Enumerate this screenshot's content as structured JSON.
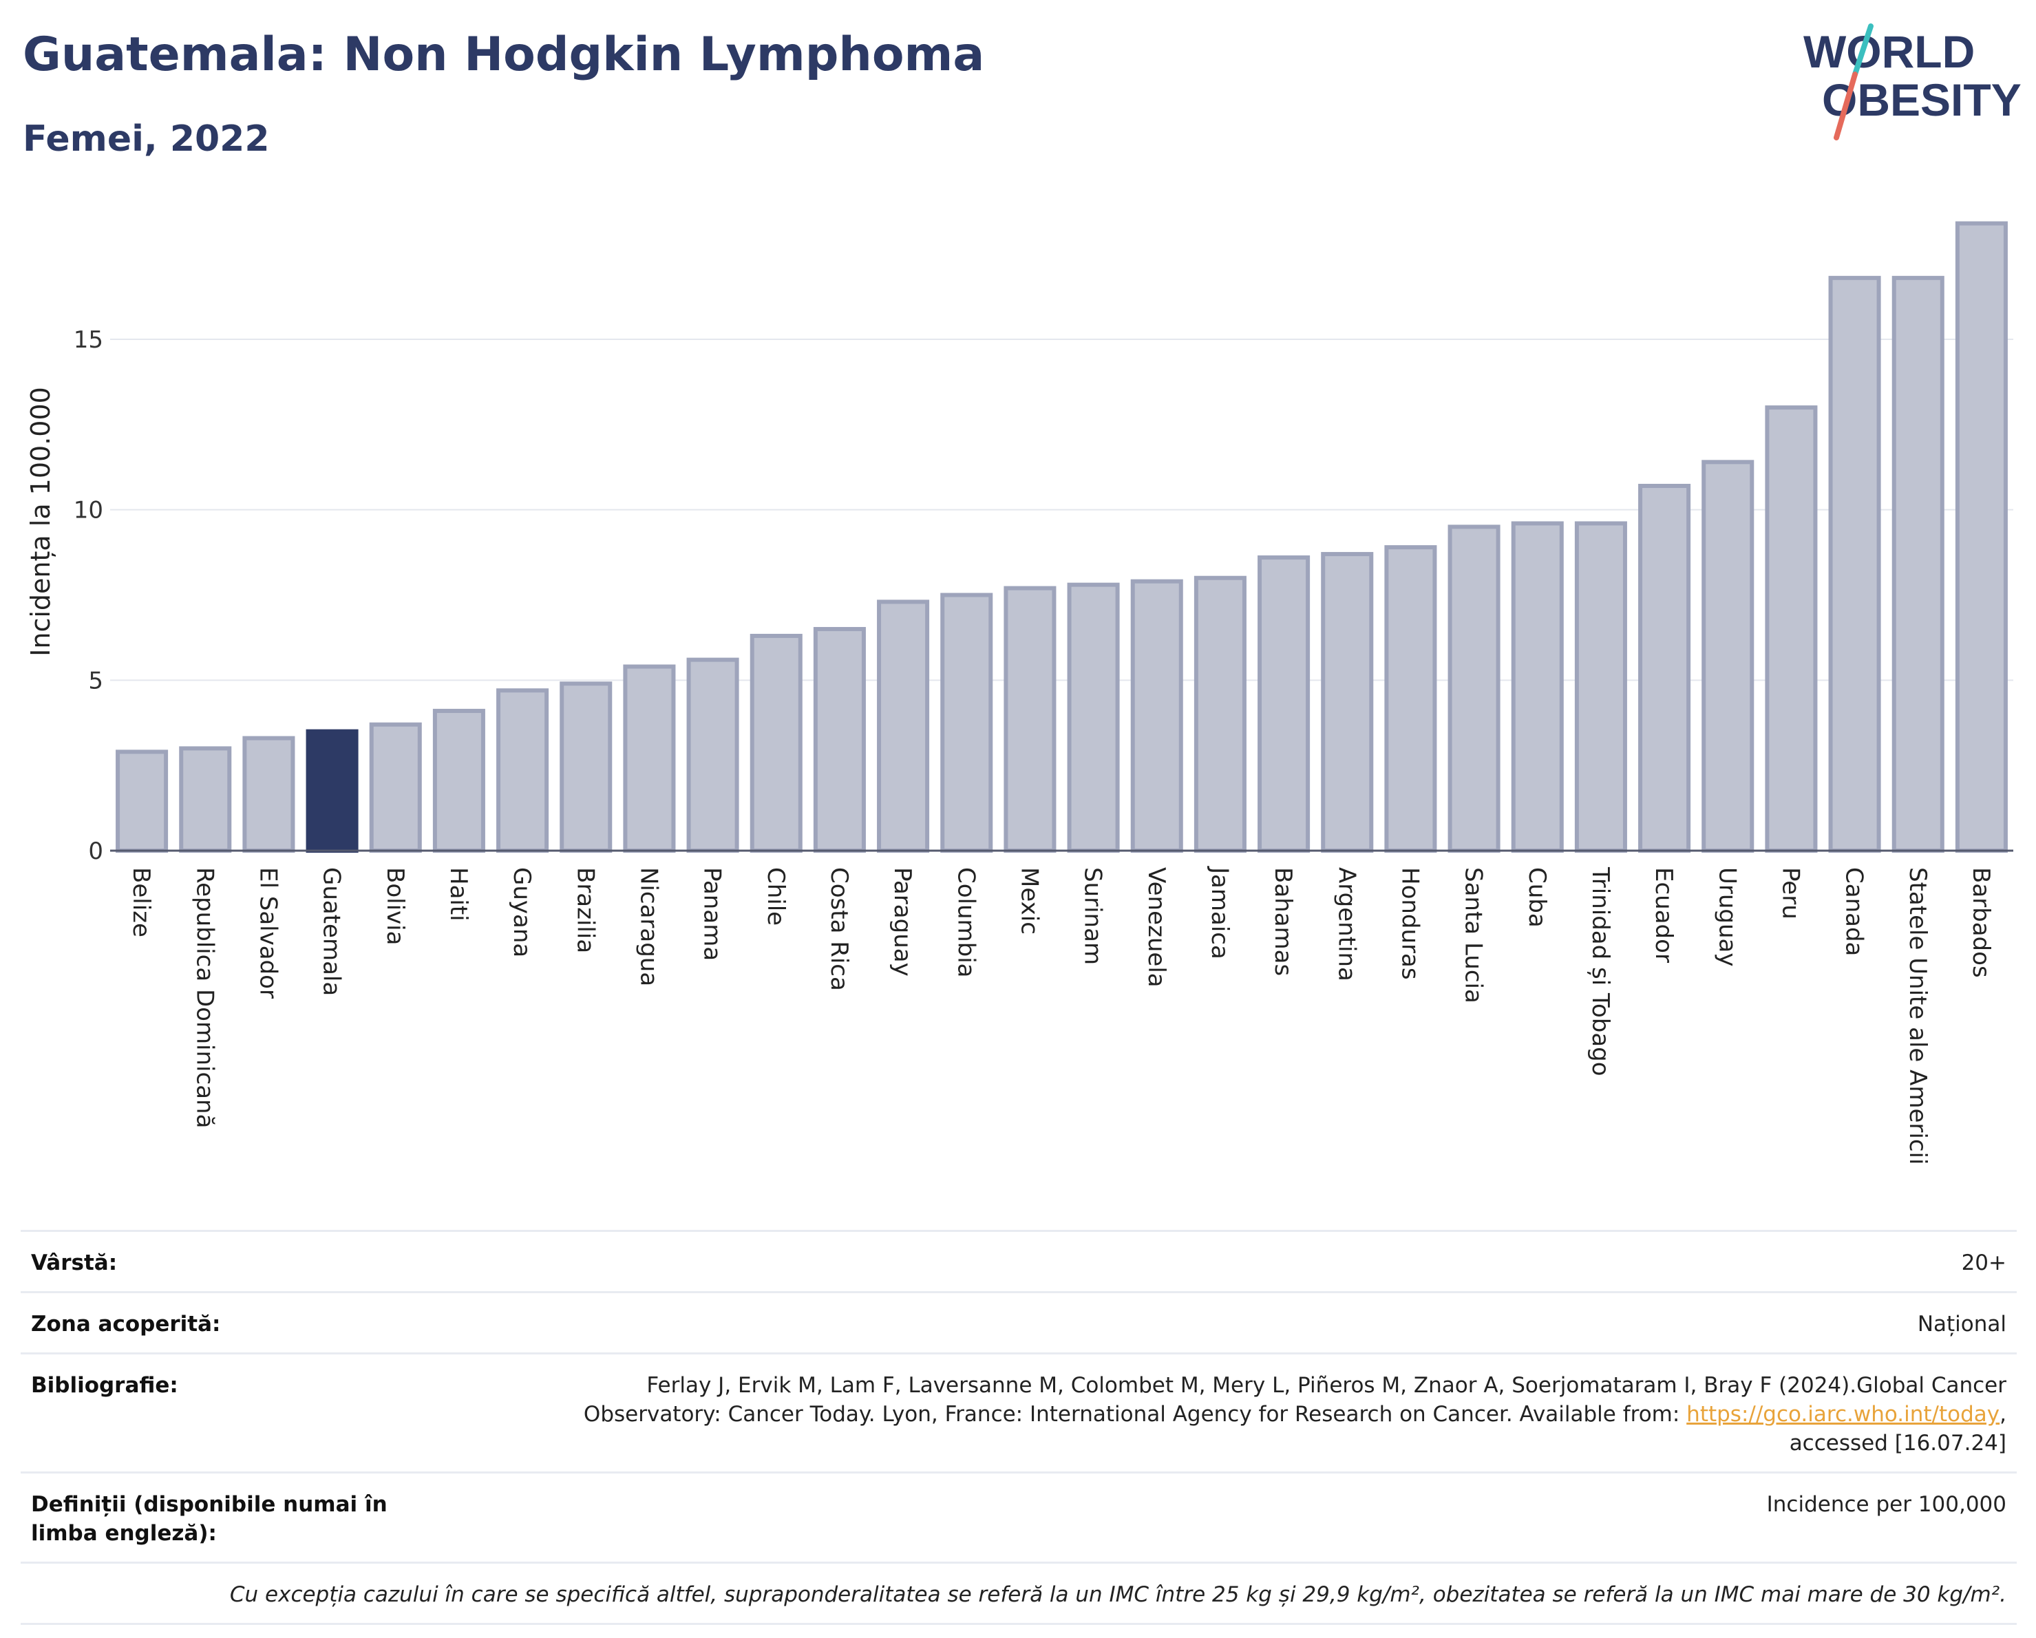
{
  "header": {
    "title": "Guatemala: Non Hodgkin Lymphoma",
    "subtitle": "Femei, 2022"
  },
  "logo": {
    "line1": "WORLD",
    "line2": "OBESITY",
    "colors": {
      "text": "#2d3a65",
      "slash_teal": "#3bbfbf",
      "slash_red": "#e56a5b"
    }
  },
  "chart_data": {
    "type": "bar",
    "title": "Guatemala: Non Hodgkin Lymphoma",
    "subtitle": "Femei, 2022",
    "xlabel": "",
    "ylabel": "Incidența la 100.000",
    "ylim": [
      0,
      18.5
    ],
    "yticks": [
      0,
      5,
      10,
      15
    ],
    "grid": true,
    "highlight": "Guatemala",
    "colors": {
      "bar": "#bfc3d1",
      "bar_stroke": "#9ea4bb",
      "highlight": "#2d3a65"
    },
    "categories": [
      "Belize",
      "Republica Dominicană",
      "El Salvador",
      "Guatemala",
      "Bolivia",
      "Haiti",
      "Guyana",
      "Brazilia",
      "Nicaragua",
      "Panama",
      "Chile",
      "Costa Rica",
      "Paraguay",
      "Columbia",
      "Mexic",
      "Surinam",
      "Venezuela",
      "Jamaica",
      "Bahamas",
      "Argentina",
      "Honduras",
      "Santa Lucia",
      "Cuba",
      "Trinidad și Tobago",
      "Ecuador",
      "Uruguay",
      "Peru",
      "Canada",
      "Statele Unite ale Americii",
      "Barbados"
    ],
    "values": [
      2.9,
      3.0,
      3.3,
      3.5,
      3.7,
      4.1,
      4.7,
      4.9,
      5.4,
      5.6,
      6.3,
      6.5,
      7.3,
      7.5,
      7.7,
      7.8,
      7.9,
      8.0,
      8.6,
      8.7,
      8.9,
      9.5,
      9.6,
      9.6,
      10.7,
      11.4,
      13.0,
      16.8,
      16.8,
      18.4
    ]
  },
  "footer": {
    "age_label": "Vârstă:",
    "age_value": "20+",
    "coverage_label": "Zona acoperită:",
    "coverage_value": "Național",
    "bibliography_label": "Bibliografie:",
    "bibliography_line1": "Ferlay J, Ervik M, Lam F, Laversanne M, Colombet M, Mery L, Piñeros M, Znaor A, Soerjomataram I, Bray F (2024).Global Cancer",
    "bibliography_line2": "Observatory: Cancer Today. Lyon, France: International Agency for Research on Cancer. Available from:",
    "bibliography_link": "https://gco.iarc.who.int/today",
    "bibliography_line3": "accessed [16.07.24]",
    "definitions_label": "Definiții (disponibile numai în limba engleză):",
    "definitions_value": "Incidence per 100,000",
    "note": "Cu excepția cazului în care se specifică altfel, supraponderalitatea se referă la un IMC între 25 kg și 29,9 kg/m², obezitatea se referă la un IMC mai mare de 30 kg/m²."
  }
}
